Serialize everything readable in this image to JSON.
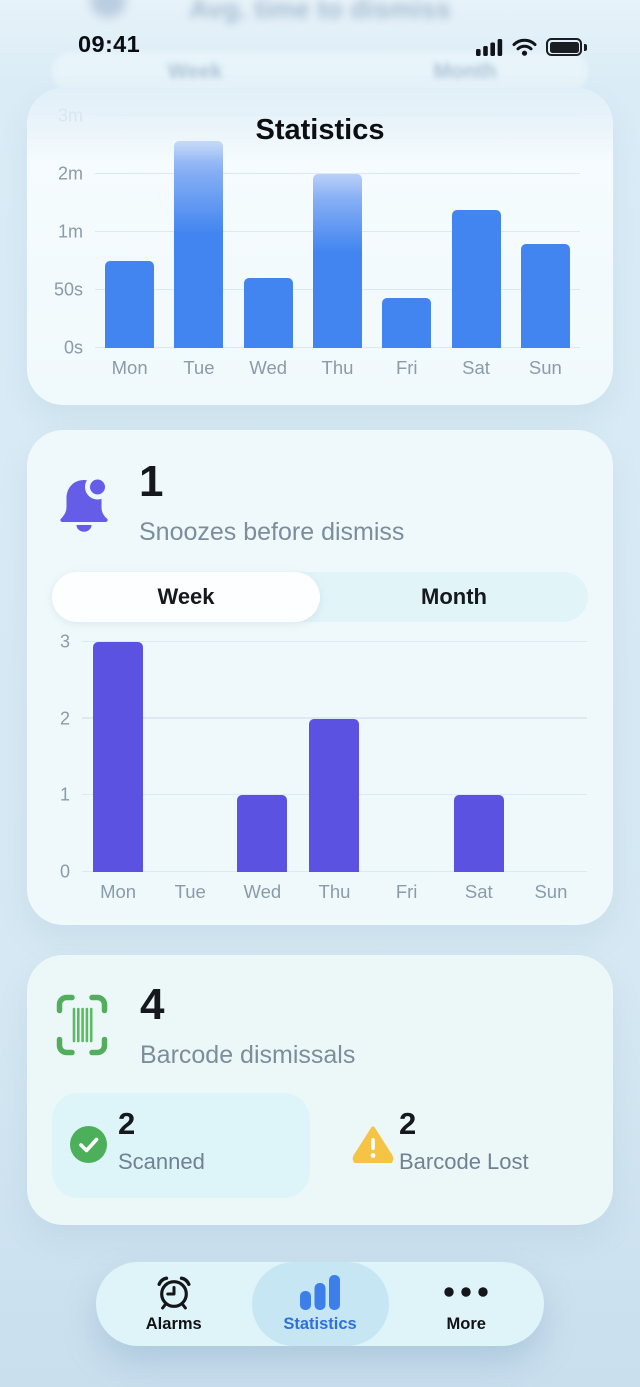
{
  "status_bar": {
    "time": "09:41"
  },
  "header": {
    "nav_title": "Statistics",
    "blurred_title": "Avg. time to dismiss",
    "blurred_tabs": [
      "Week",
      "Month"
    ]
  },
  "chart_data": [
    {
      "type": "bar",
      "title": "Avg. time to dismiss",
      "period": "Week",
      "categories": [
        "Mon",
        "Tue",
        "Wed",
        "Thu",
        "Fri",
        "Sat",
        "Sun"
      ],
      "values_seconds": [
        55,
        154,
        52,
        120,
        43,
        83,
        58
      ],
      "ytick_labels": [
        "0s",
        "50s",
        "1m",
        "2m",
        "3m"
      ],
      "ytick_values": [
        0,
        50,
        60,
        120,
        180
      ],
      "ylim": [
        0,
        180
      ],
      "grid": true,
      "legend": false,
      "bar_color": "#4285F0",
      "washed_top": true,
      "fade_above_frac": 0.74
    },
    {
      "type": "bar",
      "title": "Snoozes before dismiss",
      "period": "Week",
      "categories": [
        "Mon",
        "Tue",
        "Wed",
        "Thu",
        "Fri",
        "Sat",
        "Sun"
      ],
      "values": [
        3,
        0,
        1,
        2,
        0,
        1,
        0
      ],
      "ytick_labels": [
        "0",
        "1",
        "2",
        "3"
      ],
      "ytick_values": [
        0,
        1,
        2,
        3
      ],
      "ylim": [
        0,
        3
      ],
      "grid": true,
      "legend": false,
      "bar_color": "#5C52E2"
    }
  ],
  "snooze_card": {
    "value": "1",
    "label": "Snoozes before dismiss",
    "segmented": {
      "options": [
        "Week",
        "Month"
      ],
      "selected": "Week"
    }
  },
  "barcode_card": {
    "value": "4",
    "label": "Barcode dismissals",
    "scanned": {
      "value": "2",
      "label": "Scanned"
    },
    "lost": {
      "value": "2",
      "label": "Barcode Lost"
    }
  },
  "tab_bar": {
    "items": [
      {
        "label": "Alarms",
        "active": false
      },
      {
        "label": "Statistics",
        "active": true
      },
      {
        "label": "More",
        "active": false
      }
    ]
  },
  "colors": {
    "accent_blue": "#4285F0",
    "accent_purple": "#5C52E2",
    "bell_purple": "#655CE8",
    "green": "#4FB15C",
    "yellow": "#F6C445",
    "tab_active_text": "#2E71DB"
  }
}
